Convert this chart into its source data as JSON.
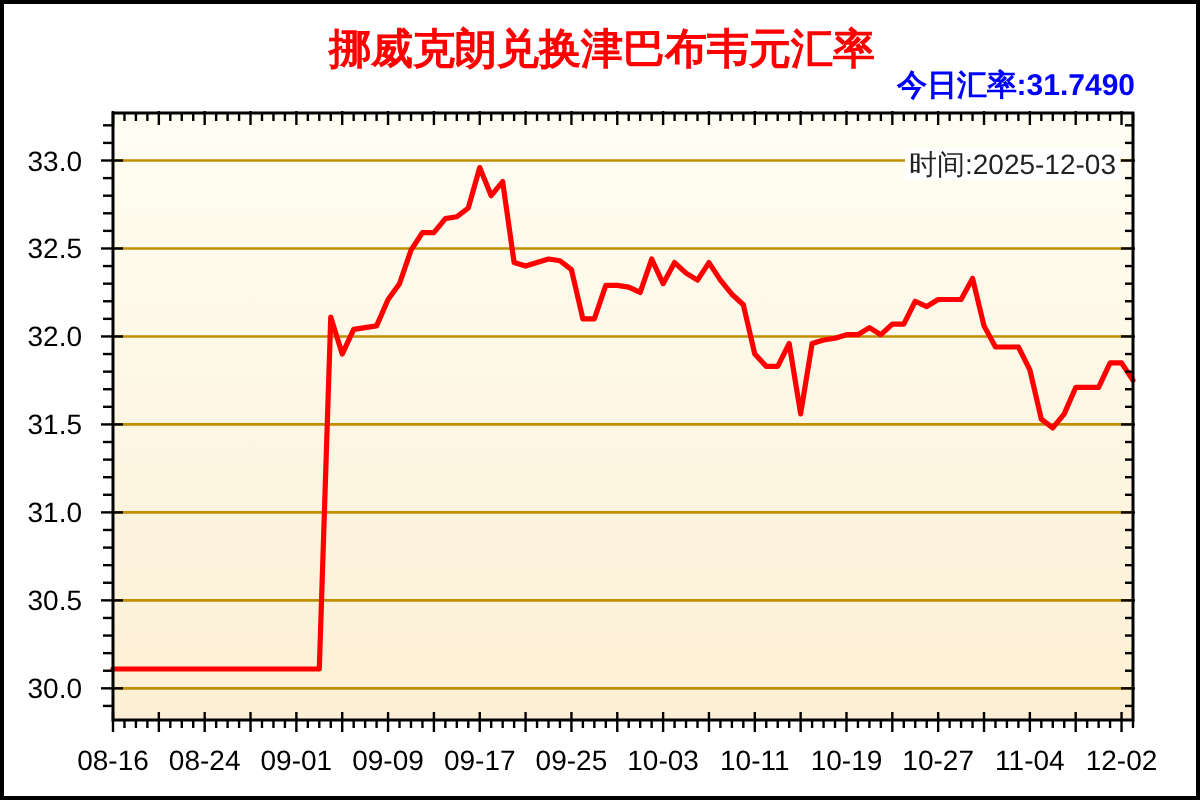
{
  "chart_data": {
    "type": "line",
    "title": "挪威克朗兑换津巴布韦元汇率",
    "subtitle": "今日汇率:31.7490",
    "annotations": [
      "时间:2025-12-03"
    ],
    "categories": [
      "08-16",
      null,
      null,
      null,
      null,
      null,
      null,
      null,
      "08-24",
      null,
      null,
      null,
      null,
      null,
      null,
      null,
      "09-01",
      null,
      null,
      null,
      null,
      null,
      null,
      null,
      "09-09",
      null,
      null,
      null,
      null,
      null,
      null,
      null,
      "09-17",
      null,
      null,
      null,
      null,
      null,
      null,
      null,
      "09-25",
      null,
      null,
      null,
      null,
      null,
      null,
      null,
      "10-03",
      null,
      null,
      null,
      null,
      null,
      null,
      null,
      "10-11",
      null,
      null,
      null,
      null,
      null,
      null,
      null,
      "10-19",
      null,
      null,
      null,
      null,
      null,
      null,
      null,
      "10-27",
      null,
      null,
      null,
      null,
      null,
      null,
      null,
      "11-04",
      null,
      null,
      null,
      null,
      null,
      null,
      null,
      "12-02",
      null
    ],
    "series": [
      {
        "color": "#ff0000",
        "values": [
          30.11,
          30.11,
          30.11,
          30.11,
          30.11,
          30.11,
          30.11,
          30.11,
          30.11,
          30.11,
          30.11,
          30.11,
          30.11,
          30.11,
          30.11,
          30.11,
          30.11,
          30.11,
          30.11,
          32.11,
          31.9,
          32.04,
          32.05,
          32.06,
          32.21,
          32.3,
          32.49,
          32.59,
          32.59,
          32.67,
          32.68,
          32.73,
          32.96,
          32.8,
          32.88,
          32.42,
          32.4,
          32.42,
          32.44,
          32.43,
          32.38,
          32.1,
          32.1,
          32.29,
          32.29,
          32.28,
          32.25,
          32.44,
          32.3,
          32.42,
          32.36,
          32.32,
          32.42,
          32.32,
          32.24,
          32.18,
          31.9,
          31.83,
          31.83,
          31.96,
          31.56,
          31.96,
          31.98,
          31.99,
          32.01,
          32.01,
          32.05,
          32.01,
          32.07,
          32.07,
          32.2,
          32.17,
          32.21,
          32.21,
          32.21,
          32.33,
          32.06,
          31.94,
          31.94,
          31.94,
          31.81,
          31.53,
          31.48,
          31.56,
          31.71,
          31.71,
          31.71,
          31.85,
          31.85,
          31.75
        ]
      }
    ],
    "ylim": [
      29.82,
      33.27
    ],
    "yticks": [
      {
        "value": 29.9,
        "label": null
      },
      {
        "value": 30,
        "label": "30.0"
      },
      {
        "value": 30.1,
        "label": null
      },
      {
        "value": 30.2,
        "label": null
      },
      {
        "value": 30.3,
        "label": null
      },
      {
        "value": 30.4,
        "label": null
      },
      {
        "value": 30.5,
        "label": "30.5"
      },
      {
        "value": 30.6,
        "label": null
      },
      {
        "value": 30.7,
        "label": null
      },
      {
        "value": 30.8,
        "label": null
      },
      {
        "value": 30.9,
        "label": null
      },
      {
        "value": 31,
        "label": "31.0"
      },
      {
        "value": 31.1,
        "label": null
      },
      {
        "value": 31.2,
        "label": null
      },
      {
        "value": 31.3,
        "label": null
      },
      {
        "value": 31.4,
        "label": null
      },
      {
        "value": 31.5,
        "label": "31.5"
      },
      {
        "value": 31.6,
        "label": null
      },
      {
        "value": 31.7,
        "label": null
      },
      {
        "value": 31.8,
        "label": null
      },
      {
        "value": 31.9,
        "label": null
      },
      {
        "value": 32,
        "label": "32.0"
      },
      {
        "value": 32.1,
        "label": null
      },
      {
        "value": 32.2,
        "label": null
      },
      {
        "value": 32.3,
        "label": null
      },
      {
        "value": 32.4,
        "label": null
      },
      {
        "value": 32.5,
        "label": "32.5"
      },
      {
        "value": 32.6,
        "label": null
      },
      {
        "value": 32.7,
        "label": null
      },
      {
        "value": 32.8,
        "label": null
      },
      {
        "value": 32.9,
        "label": null
      },
      {
        "value": 33,
        "label": "33.0"
      },
      {
        "value": 33.1,
        "label": null
      },
      {
        "value": 33.2,
        "label": null
      }
    ],
    "grid": "y"
  }
}
